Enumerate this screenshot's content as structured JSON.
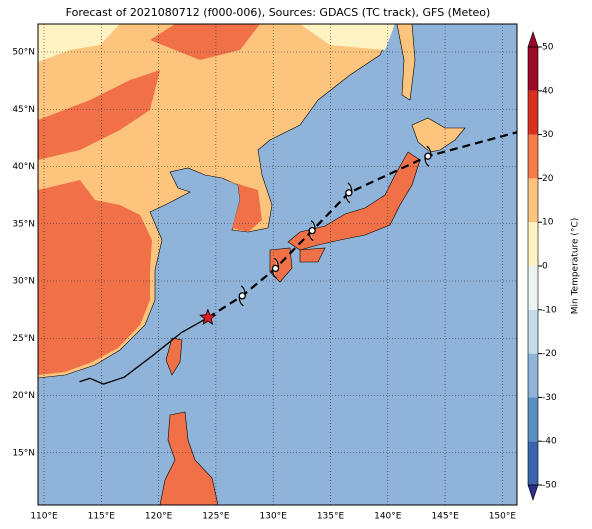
{
  "title": "Forecast of 2021080712 (f000-006), Sources: GDACS (TC track), GFS (Meteo)",
  "lon_ticks": [
    {
      "value": 110,
      "label": "110°E"
    },
    {
      "value": 115,
      "label": "115°E"
    },
    {
      "value": 120,
      "label": "120°E"
    },
    {
      "value": 125,
      "label": "125°E"
    },
    {
      "value": 130,
      "label": "130°E"
    },
    {
      "value": 135,
      "label": "135°E"
    },
    {
      "value": 140,
      "label": "140°E"
    },
    {
      "value": 145,
      "label": "145°E"
    },
    {
      "value": 150,
      "label": "150°E"
    }
  ],
  "lat_ticks": [
    {
      "value": 50,
      "label": "50°N"
    },
    {
      "value": 45,
      "label": "45°N"
    },
    {
      "value": 40,
      "label": "40°N"
    },
    {
      "value": 35,
      "label": "35°N"
    },
    {
      "value": 30,
      "label": "30°N"
    },
    {
      "value": 25,
      "label": "25°N"
    },
    {
      "value": 20,
      "label": "20°N"
    },
    {
      "value": 15,
      "label": "15°N"
    }
  ],
  "colorbar": {
    "label": "Min Temperature (°C)",
    "range": [
      -50,
      50
    ],
    "ticks": [
      -50,
      -40,
      -30,
      -20,
      -10,
      0,
      10,
      20,
      30,
      40,
      50
    ],
    "colors": [
      "#2b2f8e",
      "#3c64ad",
      "#5c8fc2",
      "#8fb3d9",
      "#c3dcea",
      "#eaf5f3",
      "#fff3c4",
      "#fdc47d",
      "#f47c48",
      "#d7301f",
      "#9b0a26"
    ]
  },
  "track": {
    "past": {
      "lon": [
        113.1,
        114.0,
        115.2,
        117.0,
        119.5,
        122.0,
        124.3
      ],
      "lat": [
        21.2,
        21.5,
        21.0,
        21.6,
        23.5,
        25.5,
        26.8
      ]
    },
    "current": {
      "lon": 124.3,
      "lat": 26.8
    },
    "forecast": {
      "lon": [
        127.3,
        130.2,
        133.4,
        136.6,
        143.5,
        151.3
      ],
      "lat": [
        28.7,
        31.1,
        34.4,
        37.7,
        40.9,
        43.0
      ]
    }
  }
}
